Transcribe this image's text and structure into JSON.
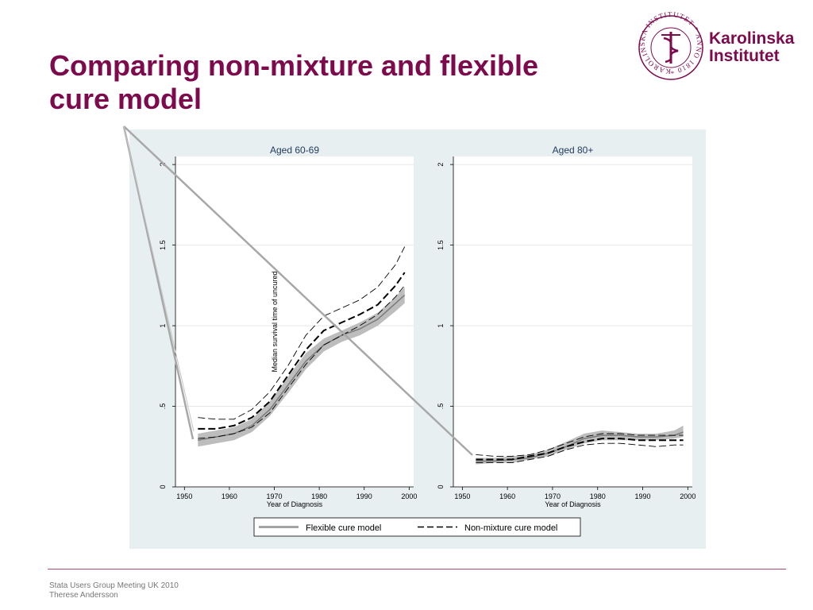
{
  "slide": {
    "title_line1": "Comparing non-mixture and flexible",
    "title_line2": "cure model",
    "colors": {
      "title": "#7d0a4c",
      "panel_bg": "#e8eff1",
      "flexible_band": "#bdbdbd",
      "flexible_line": "#7a7a7a",
      "nonmixture": "#000000"
    }
  },
  "logo": {
    "name_line1": "Karolinska",
    "name_line2": "Institutet",
    "seal_text": "KAROLINSKA INSTITUTET * ANNO 1810 *",
    "icon": "seal-icon"
  },
  "footer": {
    "line1": "Stata Users Group Meeting UK  2010",
    "line2": "Therese Andersson"
  },
  "chart_data": {
    "type": "line",
    "ylabel": "Median survival time of uncured",
    "xlabel": "Year of Diagnosis",
    "xlim": [
      1948,
      2001
    ],
    "ylim": [
      0,
      2.05
    ],
    "xticks": [
      1950,
      1960,
      1970,
      1980,
      1990,
      2000
    ],
    "yticks": [
      0,
      0.5,
      1,
      1.5,
      2
    ],
    "ytick_labels": [
      "0",
      ".5",
      "1",
      "1.5",
      "2"
    ],
    "grid": true,
    "legend": {
      "position": "bottom",
      "entries": [
        "Flexible cure model",
        "Non-mixture cure model"
      ]
    },
    "panels": [
      {
        "title": "Aged 60-69",
        "x": [
          1953,
          1957,
          1961,
          1965,
          1969,
          1973,
          1977,
          1981,
          1985,
          1989,
          1993,
          1997,
          1999
        ],
        "series": [
          {
            "name": "Flexible cure model",
            "style": "band",
            "lower": [
              0.25,
              0.27,
              0.29,
              0.34,
              0.44,
              0.58,
              0.73,
              0.84,
              0.9,
              0.94,
              1.0,
              1.09,
              1.14
            ],
            "center": [
              0.29,
              0.31,
              0.33,
              0.38,
              0.48,
              0.63,
              0.78,
              0.88,
              0.94,
              0.98,
              1.04,
              1.14,
              1.19
            ],
            "upper": [
              0.33,
              0.35,
              0.37,
              0.42,
              0.53,
              0.68,
              0.83,
              0.92,
              0.97,
              1.02,
              1.08,
              1.18,
              1.24
            ]
          },
          {
            "name": "Non-mixture cure model",
            "style": "dashed",
            "center": [
              0.36,
              0.36,
              0.38,
              0.43,
              0.53,
              0.69,
              0.85,
              0.97,
              1.02,
              1.07,
              1.13,
              1.25,
              1.33
            ],
            "lower": [
              0.3,
              0.31,
              0.33,
              0.37,
              0.46,
              0.61,
              0.76,
              0.88,
              0.94,
              1.0,
              1.07,
              1.18,
              1.25
            ],
            "upper": [
              0.43,
              0.42,
              0.42,
              0.48,
              0.59,
              0.75,
              0.94,
              1.06,
              1.11,
              1.16,
              1.24,
              1.38,
              1.49
            ]
          }
        ]
      },
      {
        "title": "Aged 80+",
        "x": [
          1953,
          1957,
          1961,
          1965,
          1969,
          1973,
          1977,
          1981,
          1985,
          1989,
          1993,
          1997,
          1999
        ],
        "series": [
          {
            "name": "Flexible cure model",
            "style": "band",
            "lower": [
              0.14,
              0.15,
              0.15,
              0.17,
              0.19,
              0.23,
              0.27,
              0.29,
              0.29,
              0.29,
              0.29,
              0.3,
              0.31
            ],
            "center": [
              0.16,
              0.16,
              0.17,
              0.18,
              0.21,
              0.25,
              0.3,
              0.32,
              0.32,
              0.31,
              0.31,
              0.32,
              0.34
            ],
            "upper": [
              0.18,
              0.18,
              0.19,
              0.2,
              0.23,
              0.28,
              0.33,
              0.35,
              0.34,
              0.33,
              0.33,
              0.35,
              0.38
            ]
          },
          {
            "name": "Non-mixture cure model",
            "style": "dashed",
            "center": [
              0.17,
              0.17,
              0.17,
              0.19,
              0.21,
              0.25,
              0.28,
              0.3,
              0.3,
              0.29,
              0.29,
              0.29,
              0.29
            ],
            "lower": [
              0.15,
              0.15,
              0.15,
              0.17,
              0.19,
              0.23,
              0.26,
              0.27,
              0.27,
              0.26,
              0.25,
              0.26,
              0.26
            ],
            "upper": [
              0.2,
              0.19,
              0.19,
              0.2,
              0.23,
              0.27,
              0.31,
              0.33,
              0.33,
              0.32,
              0.32,
              0.32,
              0.32
            ]
          }
        ]
      }
    ]
  }
}
